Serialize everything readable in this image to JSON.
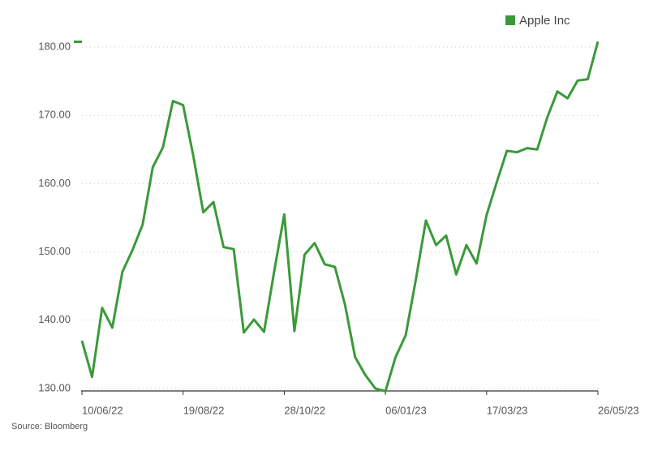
{
  "chart_data": {
    "type": "line",
    "categories": [
      "10/06/22",
      null,
      null,
      null,
      null,
      null,
      null,
      null,
      null,
      null,
      "19/08/22",
      null,
      null,
      null,
      null,
      null,
      null,
      null,
      null,
      null,
      "28/10/22",
      null,
      null,
      null,
      null,
      null,
      null,
      null,
      null,
      null,
      "06/01/23",
      null,
      null,
      null,
      null,
      null,
      null,
      null,
      null,
      null,
      "17/03/23",
      null,
      null,
      null,
      null,
      null,
      null,
      null,
      null,
      null,
      null,
      "26/05/23"
    ],
    "series": [
      {
        "name": "Apple Inc",
        "color": "#3a9a3a",
        "values": [
          137.0,
          131.7,
          141.8,
          138.9,
          147.1,
          150.3,
          154.0,
          162.4,
          165.3,
          172.1,
          171.5,
          164.1,
          155.8,
          157.3,
          150.7,
          150.4,
          138.2,
          140.1,
          138.3,
          147.1,
          155.5,
          138.4,
          149.6,
          151.3,
          148.2,
          147.8,
          142.3,
          134.6,
          132.0,
          130.0,
          129.6,
          134.6,
          137.8,
          145.9,
          154.6,
          151.0,
          152.4,
          146.7,
          151.0,
          148.3,
          155.4,
          160.2,
          164.8,
          164.6,
          165.2,
          165.0,
          169.7,
          173.5,
          172.5,
          175.1,
          175.3,
          180.8
        ]
      }
    ],
    "ylim": [
      130,
      180
    ],
    "yticks": [
      {
        "value": 130,
        "label": "130.00"
      },
      {
        "value": 140,
        "label": "140.00"
      },
      {
        "value": 150,
        "label": "150.00"
      },
      {
        "value": 160,
        "label": "160.00"
      },
      {
        "value": 170,
        "label": "170.00"
      },
      {
        "value": 180,
        "label": "180.00"
      }
    ],
    "grid": true,
    "legend": "top-right",
    "source": "Source: Bloomberg"
  }
}
